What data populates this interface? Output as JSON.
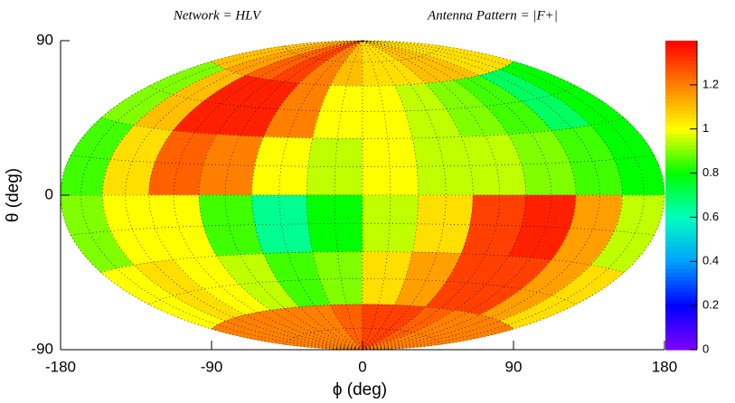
{
  "chart_data": {
    "type": "heatmap",
    "title": "Network = HLV",
    "subtitle": "Antenna Pattern =  |F+|",
    "x_label": "ϕ (deg)",
    "y_label": "θ (deg)",
    "xbins": [
      -180,
      -150,
      -120,
      -90,
      -60,
      -30,
      0,
      30,
      60,
      90,
      120,
      150,
      180
    ],
    "ybins": [
      90,
      60,
      30,
      0,
      -30,
      -60,
      -90
    ],
    "values": [
      [
        1.1,
        1.15,
        1.25,
        1.3,
        1.2,
        1.1,
        1.05,
        1.05,
        1.1,
        1.1,
        1.05,
        1.05
      ],
      [
        0.9,
        1.1,
        1.35,
        1.35,
        1.2,
        1.0,
        1.0,
        0.95,
        0.9,
        0.85,
        0.7,
        0.8
      ],
      [
        0.85,
        1.05,
        1.25,
        1.2,
        1.0,
        0.95,
        1.0,
        0.95,
        0.95,
        0.9,
        0.85,
        0.8
      ],
      [
        0.9,
        1.0,
        1.0,
        0.85,
        0.65,
        0.8,
        0.95,
        1.05,
        1.3,
        1.35,
        1.15,
        0.95
      ],
      [
        1.0,
        1.05,
        1.0,
        0.95,
        0.85,
        0.9,
        1.05,
        1.15,
        1.3,
        1.3,
        1.15,
        1.05
      ],
      [
        1.2,
        1.2,
        1.2,
        1.2,
        1.2,
        1.25,
        1.3,
        1.3,
        1.25,
        1.2,
        1.2,
        1.2
      ]
    ],
    "xlim": [
      -180,
      180
    ],
    "xticks": [
      -180,
      -90,
      0,
      90,
      180
    ],
    "ylim": [
      -90,
      90
    ],
    "yticks": [
      -90,
      0,
      90
    ],
    "zlim": [
      0,
      1.4
    ],
    "zticks": [
      0,
      0.2,
      0.4,
      0.6,
      0.8,
      1,
      1.2
    ],
    "colorscale": [
      "#8000ff",
      "#0000ff",
      "#00a0ff",
      "#00ffc0",
      "#00ff00",
      "#ffff00",
      "#ff8000",
      "#ff0000"
    ],
    "grid": true
  }
}
